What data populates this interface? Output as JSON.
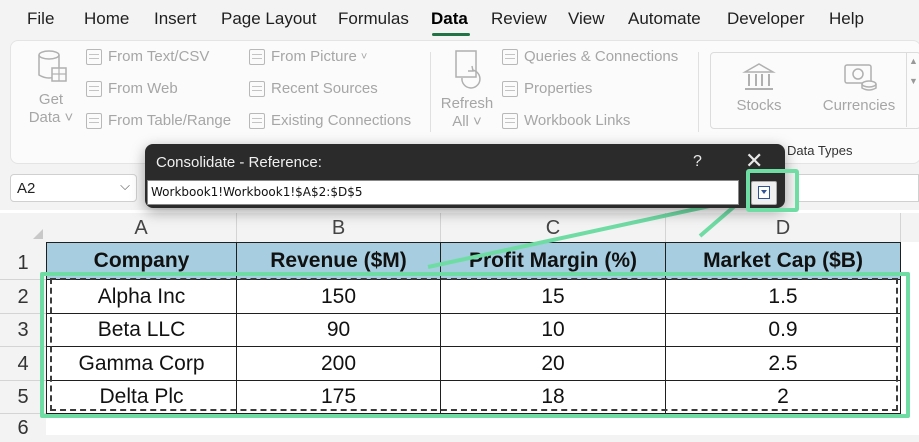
{
  "menu": [
    "File",
    "Home",
    "Insert",
    "Page Layout",
    "Formulas",
    "Data",
    "Review",
    "View",
    "Automate",
    "Developer",
    "Help"
  ],
  "menu_active": "Data",
  "ribbon": {
    "get_data": [
      "Get",
      "Data"
    ],
    "from_text_csv": "From Text/CSV",
    "from_web": "From Web",
    "from_table_range": "From Table/Range",
    "from_picture": "From Picture",
    "recent_sources": "Recent Sources",
    "existing_connections": "Existing Connections",
    "refresh_all": [
      "Refresh",
      "All"
    ],
    "queries_connections": "Queries & Connections",
    "properties": "Properties",
    "workbook_links": "Workbook Links",
    "stocks": "Stocks",
    "currencies": "Currencies",
    "data_types_label": "Data Types"
  },
  "namebox": {
    "value": "A2"
  },
  "dialog": {
    "title": "Consolidate - Reference:",
    "help": "?",
    "close": "✕",
    "reference": "Workbook1!Workbook1!$A$2:$D$5"
  },
  "sheet": {
    "columns": [
      "A",
      "B",
      "C",
      "D"
    ],
    "rows": [
      "1",
      "2",
      "3",
      "4",
      "5",
      "6"
    ],
    "headers": [
      "Company",
      "Revenue ($M)",
      "Profit Margin (%)",
      "Market Cap ($B)"
    ],
    "data": [
      [
        "Alpha Inc",
        "150",
        "15",
        "1.5"
      ],
      [
        "Beta LLC",
        "90",
        "10",
        "0.9"
      ],
      [
        "Gamma Corp",
        "200",
        "20",
        "2.5"
      ],
      [
        "Delta Plc",
        "175",
        "18",
        "2"
      ]
    ]
  },
  "colors": {
    "accent_green": "#6fdca4",
    "header_fill": "#a6cee0",
    "excel_green": "#217346"
  }
}
